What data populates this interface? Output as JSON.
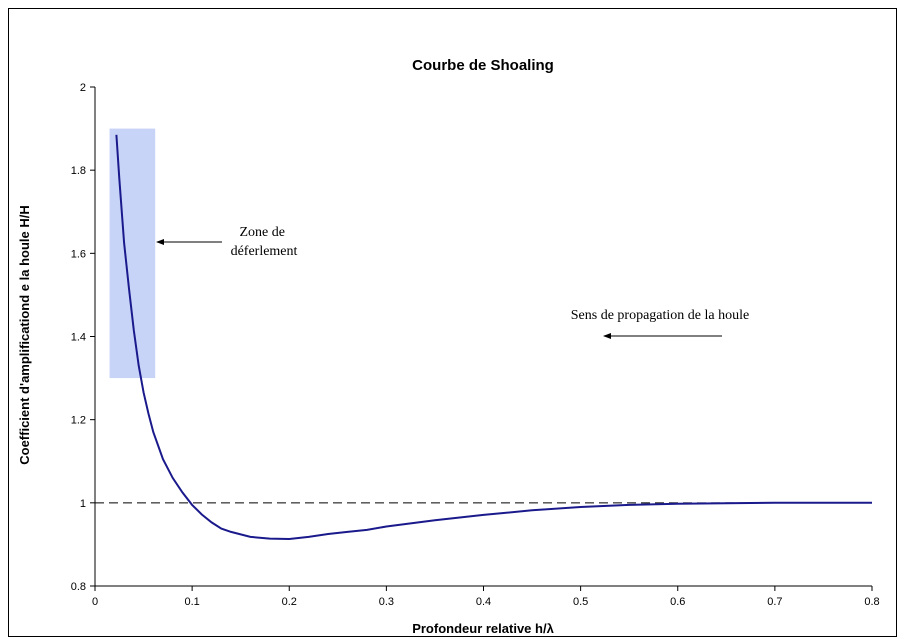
{
  "chart_data": {
    "type": "line",
    "title": "Courbe de Shoaling",
    "xlabel": "Profondeur relative h/λ",
    "ylabel": "Coefficient d'amplificationd e la houle H/H",
    "xlim": [
      0,
      0.8
    ],
    "ylim": [
      0.8,
      2
    ],
    "xticks": [
      "0",
      "0.1",
      "0.2",
      "0.3",
      "0.4",
      "0.5",
      "0.6",
      "0.7",
      "0.8"
    ],
    "yticks": [
      "0.8",
      "1",
      "1.2",
      "1.4",
      "1.6",
      "1.8",
      "2"
    ],
    "grid": false,
    "series": [
      {
        "color": "#1a1a8c",
        "x": [
          0.022,
          0.025,
          0.03,
          0.035,
          0.04,
          0.045,
          0.05,
          0.055,
          0.06,
          0.07,
          0.08,
          0.09,
          0.1,
          0.11,
          0.12,
          0.13,
          0.14,
          0.16,
          0.18,
          0.2,
          0.22,
          0.24,
          0.26,
          0.28,
          0.3,
          0.35,
          0.4,
          0.45,
          0.5,
          0.55,
          0.6,
          0.65,
          0.7,
          0.75,
          0.8
        ],
        "y": [
          1.885,
          1.78,
          1.625,
          1.515,
          1.415,
          1.33,
          1.265,
          1.215,
          1.17,
          1.105,
          1.06,
          1.025,
          0.995,
          0.972,
          0.953,
          0.938,
          0.93,
          0.918,
          0.914,
          0.913,
          0.918,
          0.925,
          0.93,
          0.935,
          0.943,
          0.958,
          0.971,
          0.982,
          0.99,
          0.995,
          0.998,
          0.999,
          1.0,
          1.0,
          1.0
        ]
      }
    ],
    "reference_line": {
      "y": 1,
      "style": "dashed"
    },
    "highlight_zone": {
      "x": [
        0.015,
        0.062
      ],
      "y": [
        1.3,
        1.9
      ],
      "color": "#c8d3f8"
    },
    "annotations": [
      {
        "lines": [
          "Zone de",
          "déferlement"
        ]
      },
      {
        "lines": [
          "Sens de propagation de la houle"
        ]
      }
    ]
  }
}
